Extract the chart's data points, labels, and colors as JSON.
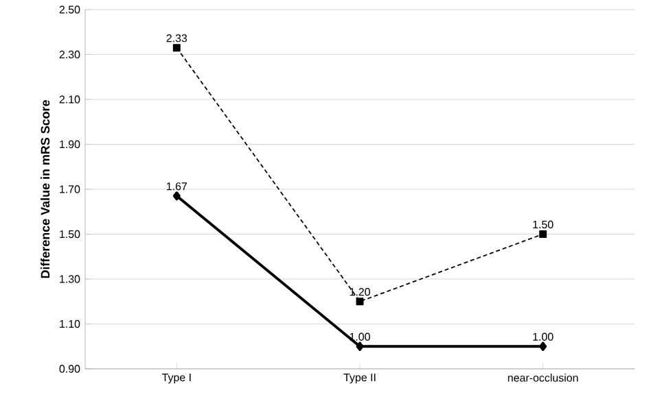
{
  "chart_data": {
    "type": "line",
    "ylabel": "Difference Value in mRS Score",
    "categories": [
      "Type I",
      "Type II",
      "near-occlusion"
    ],
    "series": [
      {
        "color": "#000000",
        "values": [
          2.33,
          1.2,
          1.5
        ],
        "value_labels": [
          "2.33",
          "1.20",
          "1.50"
        ],
        "marker": "square",
        "line_style": "dashed"
      },
      {
        "color": "#000000",
        "values": [
          1.67,
          1.0,
          1.0
        ],
        "value_labels": [
          "1.67",
          "1.00",
          "1.00"
        ],
        "marker": "diamond",
        "line_style": "solid"
      }
    ],
    "ylim": [
      0.9,
      2.5
    ],
    "yticks": [
      {
        "value": 0.9,
        "label": "0.90"
      },
      {
        "value": 1.1,
        "label": "1.10"
      },
      {
        "value": 1.3,
        "label": "1.30"
      },
      {
        "value": 1.5,
        "label": "1.50"
      },
      {
        "value": 1.7,
        "label": "1.70"
      },
      {
        "value": 1.9,
        "label": "1.90"
      },
      {
        "value": 2.1,
        "label": "2.10"
      },
      {
        "value": 2.3,
        "label": "2.30"
      },
      {
        "value": 2.5,
        "label": "2.50"
      }
    ],
    "grid": "y"
  }
}
